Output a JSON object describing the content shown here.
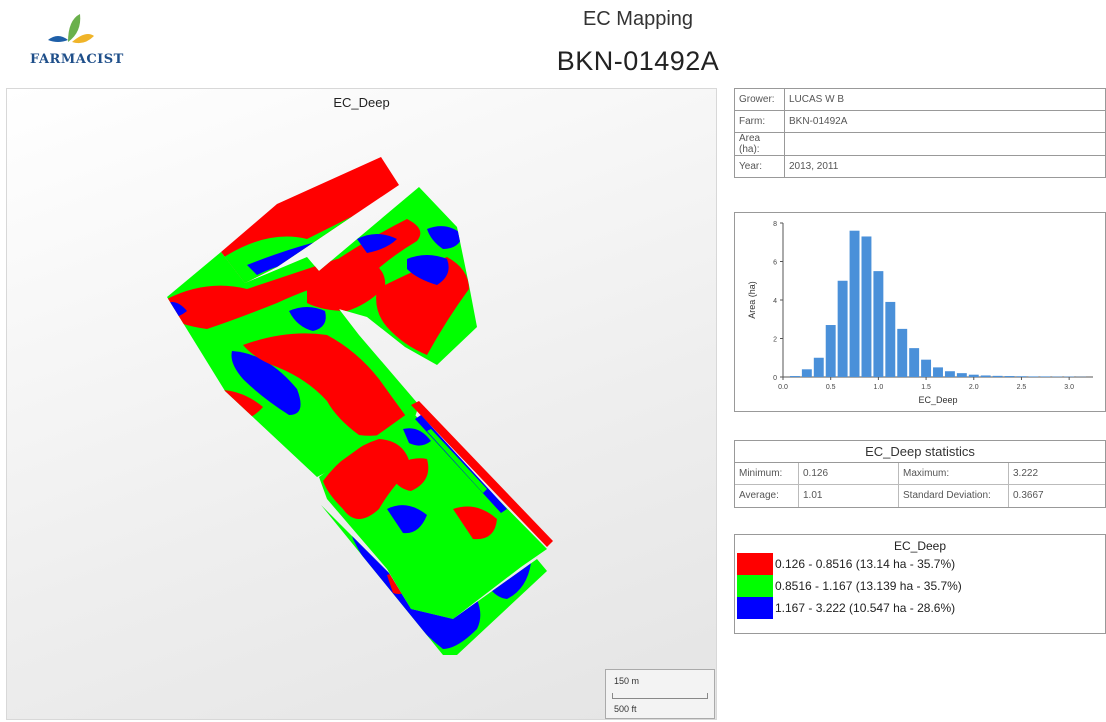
{
  "logo": {
    "text": "FARMACIST",
    "icon": "leaf-icon"
  },
  "header": {
    "title": "EC Mapping",
    "subtitle": "BKN-01492A"
  },
  "map": {
    "title": "EC_Deep",
    "scale": {
      "meters": "150 m",
      "feet": "500 ft"
    },
    "colors": {
      "low": "#ff0000",
      "mid": "#00ff00",
      "high": "#0000ff"
    }
  },
  "info": {
    "rows": [
      {
        "label": "Grower:",
        "value": "LUCAS W B"
      },
      {
        "label": "Farm:",
        "value": "BKN-01492A"
      },
      {
        "label": "Area (ha):",
        "value": ""
      },
      {
        "label": "Year:",
        "value": "2013, 2011"
      }
    ]
  },
  "chart_data": {
    "type": "bar",
    "xlabel": "EC_Deep",
    "ylabel": "Area (ha)",
    "xlim": [
      0.0,
      3.25
    ],
    "ylim": [
      0,
      8
    ],
    "xticks": [
      "0.0",
      "0.5",
      "1.0",
      "1.5",
      "2.0",
      "2.5",
      "3.0"
    ],
    "yticks": [
      "0",
      "2",
      "4",
      "6",
      "8"
    ],
    "bin_width": 0.125,
    "bin_centers": [
      0.125,
      0.25,
      0.375,
      0.5,
      0.625,
      0.75,
      0.875,
      1.0,
      1.125,
      1.25,
      1.375,
      1.5,
      1.625,
      1.75,
      1.875,
      2.0,
      2.125,
      2.25,
      2.375,
      2.5,
      2.625,
      2.75,
      2.875,
      3.0,
      3.125
    ],
    "values": [
      0.05,
      0.4,
      1.0,
      2.7,
      5.0,
      7.6,
      7.3,
      5.5,
      3.9,
      2.5,
      1.5,
      0.9,
      0.5,
      0.3,
      0.2,
      0.12,
      0.08,
      0.06,
      0.05,
      0.04,
      0.03,
      0.03,
      0.02,
      0.02,
      0.01
    ],
    "bar_color": "#4a90d9"
  },
  "stats": {
    "title": "EC_Deep statistics",
    "minimum_label": "Minimum:",
    "minimum": "0.126",
    "maximum_label": "Maximum:",
    "maximum": "3.222",
    "average_label": "Average:",
    "average": "1.01",
    "stddev_label": "Standard Deviation:",
    "stddev": "0.3667"
  },
  "legend": {
    "title": "EC_Deep",
    "items": [
      {
        "label": "0.126 - 0.8516 (13.14 ha - 35.7%)",
        "color": "#ff0000"
      },
      {
        "label": "0.8516 - 1.167 (13.139 ha - 35.7%)",
        "color": "#00ff00"
      },
      {
        "label": "1.167 - 3.222 (10.547 ha - 28.6%)",
        "color": "#0000ff"
      }
    ]
  }
}
